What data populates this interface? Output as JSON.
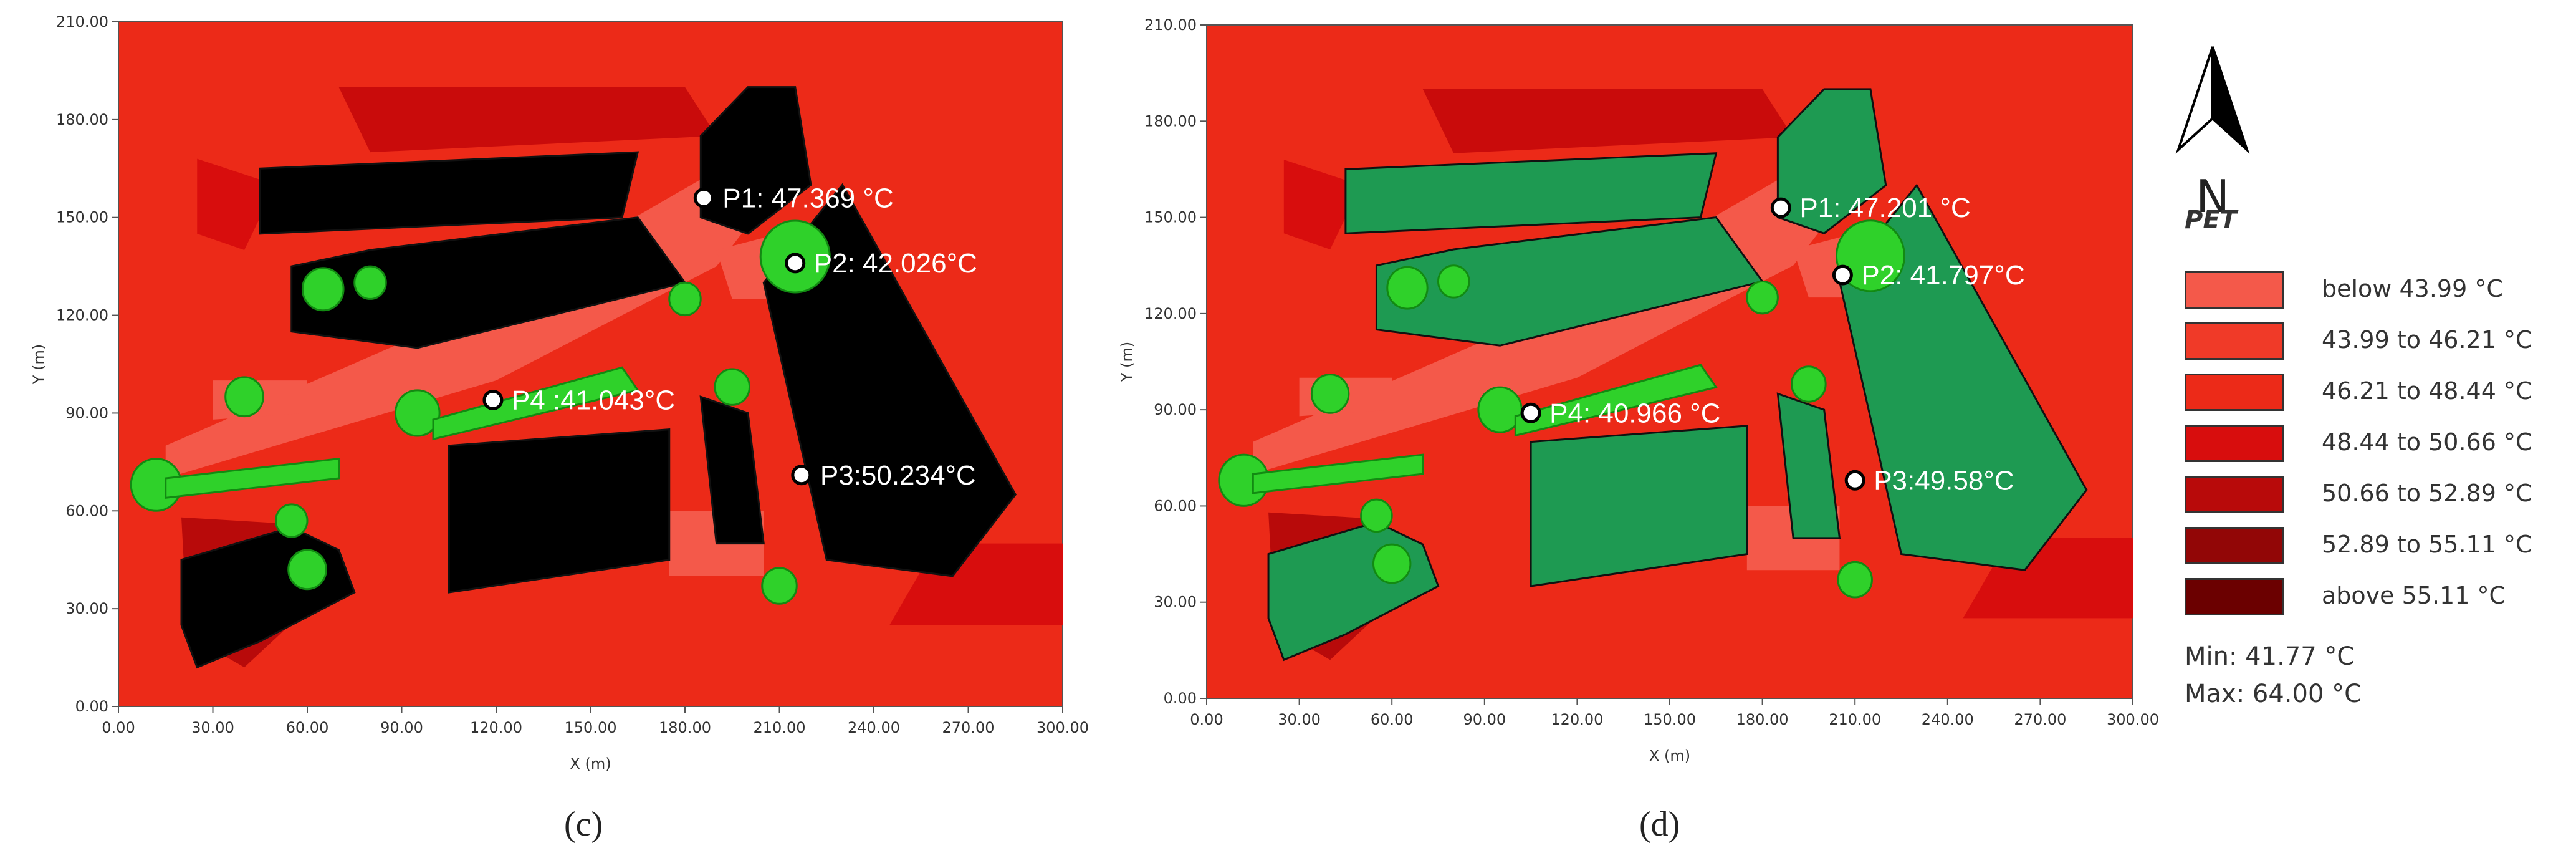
{
  "panels": [
    {
      "id": "c",
      "caption": "(c)",
      "xlabel": "X (m)",
      "ylabel": "Y (m)",
      "xticks": [
        "0.00",
        "30.00",
        "60.00",
        "90.00",
        "120.00",
        "150.00",
        "180.00",
        "210.00",
        "240.00",
        "270.00",
        "300.00"
      ],
      "yticks": [
        "0.00",
        "30.00",
        "60.00",
        "90.00",
        "120.00",
        "150.00",
        "180.00",
        "210.00"
      ],
      "building_color": "#000000",
      "points": [
        {
          "label": "P1: 47.369 °C",
          "x": 186,
          "y": 156
        },
        {
          "label": "P2: 42.026°C",
          "x": 215,
          "y": 136
        },
        {
          "label": "P3:50.234°C",
          "x": 217,
          "y": 71
        },
        {
          "label": "P4 :41.043°C",
          "x": 119,
          "y": 94
        }
      ]
    },
    {
      "id": "d",
      "caption": "(d)",
      "xlabel": "X (m)",
      "ylabel": "Y (m)",
      "xticks": [
        "0.00",
        "30.00",
        "60.00",
        "90.00",
        "120.00",
        "150.00",
        "180.00",
        "210.00",
        "240.00",
        "270.00",
        "300.00"
      ],
      "yticks": [
        "0.00",
        "30.00",
        "60.00",
        "90.00",
        "120.00",
        "150.00",
        "180.00",
        "210.00"
      ],
      "building_color": "#1e9a52",
      "points": [
        {
          "label": "P1: 47.201 °C",
          "x": 186,
          "y": 153
        },
        {
          "label": "P2: 41.797°C",
          "x": 206,
          "y": 132
        },
        {
          "label": "P3:49.58°C",
          "x": 210,
          "y": 68
        },
        {
          "label": "P4: 40.966 °C",
          "x": 105,
          "y": 89
        }
      ]
    }
  ],
  "legend": {
    "north": "N",
    "title": "PET",
    "items": [
      {
        "label": "below 43.99 °C",
        "color": "#f4594a"
      },
      {
        "label": "43.99 to 46.21 °C",
        "color": "#f03a28"
      },
      {
        "label": "46.21 to 48.44 °C",
        "color": "#ec2a18"
      },
      {
        "label": "48.44 to 50.66 °C",
        "color": "#d80d0d"
      },
      {
        "label": "50.66 to 52.89 °C",
        "color": "#b80a0a"
      },
      {
        "label": "52.89 to 55.11 °C",
        "color": "#920606"
      },
      {
        "label": "above 55.11 °C",
        "color": "#6b0000"
      }
    ],
    "min": "Min: 41.77 °C",
    "max": "Max: 64.00 °C"
  }
}
